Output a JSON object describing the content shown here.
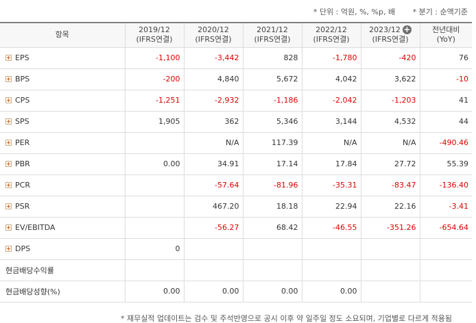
{
  "notes": {
    "unit": "* 단위 : 억원, %, %p, 배",
    "period": "* 분기 : 순액기준",
    "footer": "* 재무실적 업데이트는 검수 및 주석반영으로 공시 이후 약 일주일 정도 소요되며, 기업별로 다르게 적용됨"
  },
  "columns": [
    {
      "label": "항목",
      "sub": ""
    },
    {
      "label": "2019/12",
      "sub": "(IFRS연결)"
    },
    {
      "label": "2020/12",
      "sub": "(IFRS연결)"
    },
    {
      "label": "2021/12",
      "sub": "(IFRS연결)"
    },
    {
      "label": "2022/12",
      "sub": "(IFRS연결)"
    },
    {
      "label": "2023/12",
      "sub": "(IFRS연결)"
    },
    {
      "label": "전년대비",
      "sub": "(YoY)"
    }
  ],
  "rows": [
    {
      "name": "EPS",
      "expand": true,
      "values": [
        "-1,100",
        "-3,442",
        "828",
        "-1,780",
        "-420",
        "76"
      ]
    },
    {
      "name": "BPS",
      "expand": true,
      "values": [
        "-200",
        "4,840",
        "5,672",
        "4,042",
        "3,622",
        "-10"
      ]
    },
    {
      "name": "CPS",
      "expand": true,
      "values": [
        "-1,251",
        "-2,932",
        "-1,186",
        "-2,042",
        "-1,203",
        "41"
      ]
    },
    {
      "name": "SPS",
      "expand": true,
      "values": [
        "1,905",
        "362",
        "5,346",
        "3,144",
        "4,532",
        "44"
      ]
    },
    {
      "name": "PER",
      "expand": true,
      "values": [
        "",
        "N/A",
        "117.39",
        "N/A",
        "N/A",
        "-490.46"
      ]
    },
    {
      "name": "PBR",
      "expand": true,
      "values": [
        "0.00",
        "34.91",
        "17.14",
        "17.84",
        "27.72",
        "55.39"
      ]
    },
    {
      "name": "PCR",
      "expand": true,
      "values": [
        "",
        "-57.64",
        "-81.96",
        "-35.31",
        "-83.47",
        "-136.40"
      ]
    },
    {
      "name": "PSR",
      "expand": true,
      "values": [
        "",
        "467.20",
        "18.18",
        "22.94",
        "22.16",
        "-3.41"
      ]
    },
    {
      "name": "EV/EBITDA",
      "expand": true,
      "values": [
        "",
        "-56.27",
        "68.42",
        "-46.55",
        "-351.26",
        "-654.64"
      ]
    },
    {
      "name": "DPS",
      "expand": true,
      "values": [
        "0",
        "",
        "",
        "",
        "",
        ""
      ]
    },
    {
      "name": "현금배당수익률",
      "expand": false,
      "values": [
        "",
        "",
        "",
        "",
        "",
        ""
      ]
    },
    {
      "name": "현금배당성향(%)",
      "expand": false,
      "values": [
        "0.00",
        "0.00",
        "0.00",
        "0.00",
        "",
        ""
      ]
    }
  ],
  "colors": {
    "negative": "#dd0000",
    "header_bg": "#f7f7f7",
    "expand_icon": "#d0632a"
  },
  "icons": {
    "row_expand": "plus-box-icon",
    "add_column": "circle-plus-icon"
  }
}
